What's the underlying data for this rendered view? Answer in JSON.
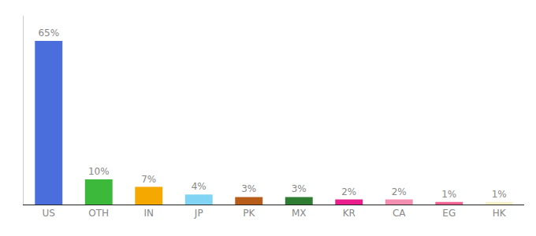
{
  "chart_data": {
    "type": "bar",
    "categories": [
      "US",
      "OTH",
      "IN",
      "JP",
      "PK",
      "MX",
      "KR",
      "CA",
      "EG",
      "HK"
    ],
    "values": [
      65,
      10,
      7,
      4,
      3,
      3,
      2,
      2,
      1,
      1
    ],
    "value_labels": [
      "65%",
      "10%",
      "7%",
      "4%",
      "3%",
      "3%",
      "2%",
      "2%",
      "1%",
      "1%"
    ],
    "colors": [
      "#4a6fdc",
      "#3cb83a",
      "#f5a800",
      "#82d4f5",
      "#b85c1a",
      "#2e7d32",
      "#e91e8c",
      "#f48fb1",
      "#f06292",
      "#f5f0c8"
    ],
    "ylim": [
      0,
      75
    ],
    "grid": false,
    "data_labels": true,
    "tick_labels": "x"
  }
}
